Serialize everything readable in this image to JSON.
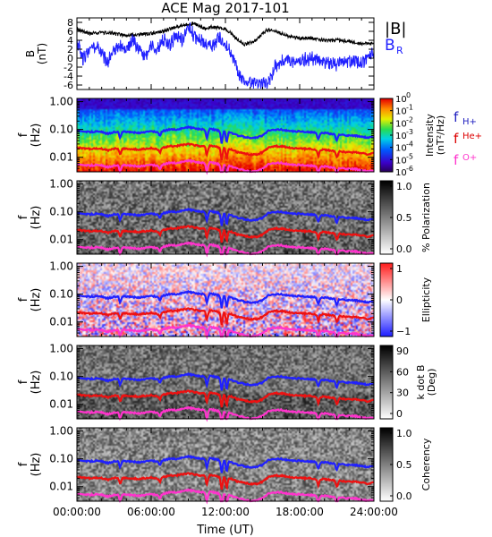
{
  "title": "ACE Mag 2017-101",
  "xlabel": "Time (UT)",
  "x_ticks": [
    "00:00:00",
    "06:00:00",
    "12:00:00",
    "18:00:00",
    "24:00:00"
  ],
  "f_ticks": [
    "1.00",
    "0.10",
    "0.01"
  ],
  "chart_data": [
    {
      "type": "line",
      "title": "",
      "ylabel": "B (nT)",
      "ylabel_line1": "B",
      "ylabel_line2": "(nT)",
      "x_range_hours": [
        0,
        24
      ],
      "ylim": [
        -7,
        9
      ],
      "y_ticks": [
        "8",
        "6",
        "4",
        "2",
        "0",
        "-2",
        "-4",
        "-6"
      ],
      "legend": {
        "placement": "right",
        "entries": [
          "|B|",
          "B_R"
        ]
      },
      "legend_labels": {
        "total": "|B|",
        "radial_main": "B",
        "radial_sub": "R"
      },
      "series": [
        {
          "name": "|B|",
          "color": "#000000",
          "x": [
            0,
            1,
            2,
            3,
            4,
            5,
            6,
            7,
            8,
            9,
            9.5,
            10,
            10.5,
            11,
            11.5,
            12,
            12.5,
            13,
            13.5,
            14,
            14.5,
            15,
            15.5,
            16,
            17,
            18,
            19,
            20,
            21,
            22,
            23,
            24
          ],
          "y": [
            6.5,
            5.5,
            5.8,
            5.5,
            5,
            5.3,
            5.5,
            6,
            7,
            7.5,
            7.8,
            7,
            6.5,
            7,
            6.8,
            6.5,
            5.5,
            4,
            3,
            3.5,
            4,
            5.5,
            6.5,
            6,
            5,
            4.5,
            4.5,
            4,
            4,
            3.8,
            3.2,
            3.5
          ]
        },
        {
          "name": "B_R",
          "color": "#2020ff",
          "x": [
            0,
            0.5,
            1,
            1.5,
            2,
            2.5,
            3,
            3.5,
            4,
            4.5,
            5,
            5.5,
            6,
            6.5,
            7,
            7.5,
            8,
            8.5,
            9,
            9.5,
            10,
            10.5,
            11,
            11.5,
            12,
            12.5,
            13,
            13.5,
            14,
            14.5,
            15,
            15.5,
            16,
            16.5,
            17,
            17.5,
            18,
            19,
            20,
            21,
            22,
            23,
            24
          ],
          "y": [
            4,
            0,
            2,
            3,
            1,
            -1,
            2,
            3,
            2,
            4,
            2,
            0,
            3,
            2,
            4,
            3,
            5,
            4,
            7,
            5,
            4,
            3,
            3,
            4.5,
            3,
            1,
            -3,
            -5,
            -5.5,
            -6,
            -6,
            -5.5,
            -2,
            -1,
            0,
            -1,
            -0.5,
            0,
            -1,
            -1.5,
            -0.5,
            -1,
            1.5
          ]
        }
      ]
    },
    {
      "type": "heatmap",
      "title": "",
      "ylabel": "f (Hz)",
      "ylabel_line1": "f",
      "ylabel_line2": "(Hz)",
      "y_scale": "log",
      "ylim": [
        0.003,
        1.3
      ],
      "colorbar": {
        "label": "Intensity (nT²/Hz)",
        "label_line1": "Intensity",
        "label_line2": "(nT²/Hz)",
        "range_exponents": [
          -6,
          0
        ],
        "ticks": [
          {
            "base": "10",
            "exp": "0",
            "value": 0
          },
          {
            "base": "10",
            "exp": "-1",
            "value": -1
          },
          {
            "base": "10",
            "exp": "-2",
            "value": -2
          },
          {
            "base": "10",
            "exp": "-3",
            "value": -3
          },
          {
            "base": "10",
            "exp": "-4",
            "value": -4
          },
          {
            "base": "10",
            "exp": "-5",
            "value": -5
          },
          {
            "base": "10",
            "exp": "-6",
            "value": -6
          }
        ]
      },
      "legend": {
        "placement": "right",
        "entries": [
          {
            "main": "f",
            "sub": "H+",
            "color": "#2020c0"
          },
          {
            "main": "f",
            "sub": "He+",
            "color": "#dd0000"
          },
          {
            "main": "f",
            "sub": "O+",
            "color": "#ff33cc"
          }
        ]
      }
    },
    {
      "type": "heatmap",
      "title": "",
      "ylabel": "f (Hz)",
      "ylabel_line1": "f",
      "ylabel_line2": "(Hz)",
      "y_scale": "log",
      "colorbar": {
        "label": "% Polarization",
        "ticks": [
          "1.0",
          "0.5",
          "0.0"
        ],
        "range": [
          0,
          1
        ]
      }
    },
    {
      "type": "heatmap",
      "title": "",
      "ylabel": "f (Hz)",
      "ylabel_line1": "f",
      "ylabel_line2": "(Hz)",
      "y_scale": "log",
      "colorbar": {
        "label": "Ellipticity",
        "ticks": [
          "1",
          "0",
          "−1"
        ],
        "range": [
          -1,
          1
        ]
      }
    },
    {
      "type": "heatmap",
      "title": "",
      "ylabel": "f (Hz)",
      "ylabel_line1": "f",
      "ylabel_line2": "(Hz)",
      "y_scale": "log",
      "colorbar": {
        "label": "k dot B (Deg)",
        "label_line1": "k dot B",
        "label_line2": "(Deg)",
        "ticks": [
          "90",
          "60",
          "30",
          "0"
        ],
        "range": [
          0,
          90
        ]
      }
    },
    {
      "type": "heatmap",
      "title": "",
      "ylabel": "f (Hz)",
      "ylabel_line1": "f",
      "ylabel_line2": "(Hz)",
      "y_scale": "log",
      "colorbar": {
        "label": "Coherency",
        "ticks": [
          "1.0",
          "0.5",
          "0.0"
        ],
        "range": [
          0,
          1
        ]
      }
    }
  ],
  "gyrofrequency_lines": {
    "x_hours": [
      0,
      0.5,
      1,
      1.5,
      2,
      2.5,
      3,
      3.5,
      4,
      4.5,
      5,
      5.5,
      6,
      6.5,
      7,
      7.5,
      8,
      8.5,
      9,
      9.5,
      10,
      10.5,
      11,
      11.5,
      12,
      12.5,
      13,
      13.5,
      14,
      14.5,
      15,
      15.5,
      16,
      16.5,
      17,
      17.5,
      18,
      18.5,
      19,
      19.5,
      20,
      20.5,
      21,
      21.5,
      22,
      22.5,
      23,
      23.5,
      24
    ],
    "f_H_plus_hz": [
      0.09,
      0.085,
      0.08,
      0.085,
      0.08,
      0.07,
      0.08,
      0.085,
      0.08,
      0.08,
      0.075,
      0.08,
      0.085,
      0.08,
      0.09,
      0.1,
      0.1,
      0.11,
      0.12,
      0.11,
      0.1,
      0.105,
      0.1,
      0.09,
      0.09,
      0.075,
      0.06,
      0.055,
      0.05,
      0.05,
      0.06,
      0.09,
      0.1,
      0.1,
      0.09,
      0.085,
      0.085,
      0.08,
      0.08,
      0.075,
      0.075,
      0.07,
      0.065,
      0.065,
      0.06,
      0.06,
      0.055,
      0.05,
      0.055
    ],
    "f_He_plus_hz": [
      0.0225,
      0.021,
      0.02,
      0.021,
      0.02,
      0.0175,
      0.02,
      0.021,
      0.02,
      0.02,
      0.019,
      0.02,
      0.021,
      0.02,
      0.0225,
      0.025,
      0.025,
      0.0275,
      0.03,
      0.0275,
      0.025,
      0.026,
      0.025,
      0.0225,
      0.0225,
      0.019,
      0.015,
      0.014,
      0.0125,
      0.0125,
      0.015,
      0.0225,
      0.025,
      0.025,
      0.0225,
      0.021,
      0.021,
      0.02,
      0.02,
      0.019,
      0.019,
      0.0175,
      0.016,
      0.016,
      0.015,
      0.015,
      0.014,
      0.0125,
      0.014
    ],
    "f_O_plus_hz": [
      0.0056,
      0.0053,
      0.005,
      0.0053,
      0.005,
      0.0044,
      0.005,
      0.0053,
      0.005,
      0.005,
      0.0047,
      0.005,
      0.0053,
      0.005,
      0.0056,
      0.0063,
      0.0063,
      0.0069,
      0.0075,
      0.0069,
      0.0063,
      0.0066,
      0.0063,
      0.0056,
      0.0056,
      0.0047,
      0.0038,
      0.0034,
      0.0031,
      0.0031,
      0.0038,
      0.0056,
      0.0063,
      0.0063,
      0.0056,
      0.0053,
      0.0053,
      0.005,
      0.005,
      0.0047,
      0.0047,
      0.0044,
      0.0041,
      0.0041,
      0.0038,
      0.0038,
      0.0034,
      0.0031,
      0.0034
    ],
    "dips": [
      {
        "hour": 3.5,
        "factor": 0.6
      },
      {
        "hour": 6.7,
        "factor": 0.7
      },
      {
        "hour": 10.5,
        "factor": 0.45
      },
      {
        "hour": 11.7,
        "factor": 0.35
      },
      {
        "hour": 12.1,
        "factor": 0.4
      },
      {
        "hour": 19.5,
        "factor": 0.6
      },
      {
        "hour": 21.0,
        "factor": 0.6
      }
    ]
  },
  "colors": {
    "B_total": "#000000",
    "B_R": "#2020ff",
    "f_H_plus": "#2020ff",
    "f_He_plus": "#ee1111",
    "f_O_plus": "#ff33cc",
    "axis": "#000000"
  }
}
